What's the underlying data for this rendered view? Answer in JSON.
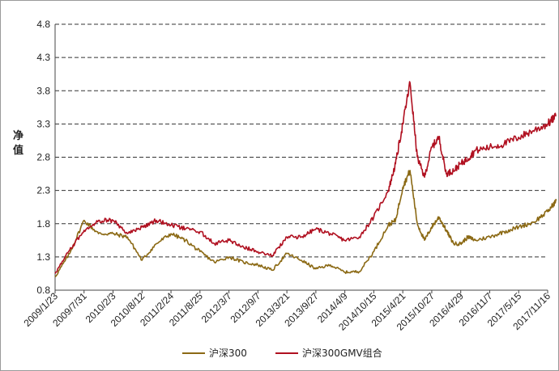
{
  "chart_data": {
    "type": "line",
    "ylabel": "净值",
    "ylim": [
      0.8,
      4.8
    ],
    "yticks": [
      "0.8",
      "1.3",
      "1.8",
      "2.3",
      "2.8",
      "3.3",
      "3.8",
      "4.3",
      "4.8"
    ],
    "categories": [
      "2009/1/23",
      "2009/7/31",
      "2010/2/3",
      "2010/8/12",
      "2011/2/24",
      "2011/8/25",
      "2012/3/7",
      "2012/9/7",
      "2013/3/21",
      "2013/9/27",
      "2014/4/9",
      "2014/10/15",
      "2015/4/21",
      "2015/10/27",
      "2016/4/29",
      "2016/11/7",
      "2017/5/15",
      "2017/11/16"
    ],
    "grid": true,
    "legend_position": "bottom",
    "series": [
      {
        "name": "沪深300",
        "color": "#8b6914",
        "x": [
          0,
          0.5,
          1,
          1.5,
          2,
          2.5,
          3,
          3.5,
          4,
          4.5,
          5,
          5.5,
          6,
          6.5,
          7,
          7.5,
          8,
          8.5,
          9,
          9.5,
          10,
          10.5,
          11,
          11.5,
          11.75,
          12,
          12.25,
          12.5,
          12.75,
          13,
          13.25,
          13.5,
          13.75,
          14,
          14.25,
          14.5,
          15,
          15.5,
          16,
          16.5,
          17,
          17.3
        ],
        "values": [
          1.0,
          1.35,
          1.85,
          1.65,
          1.65,
          1.6,
          1.25,
          1.5,
          1.65,
          1.55,
          1.38,
          1.22,
          1.3,
          1.22,
          1.18,
          1.1,
          1.35,
          1.25,
          1.12,
          1.18,
          1.07,
          1.08,
          1.38,
          1.78,
          1.85,
          2.35,
          2.6,
          1.8,
          1.55,
          1.75,
          1.9,
          1.7,
          1.5,
          1.5,
          1.6,
          1.55,
          1.6,
          1.68,
          1.75,
          1.82,
          1.98,
          2.15
        ]
      },
      {
        "name": "沪深300GMV组合",
        "color": "#b01020",
        "x": [
          0,
          0.5,
          1,
          1.5,
          2,
          2.5,
          3,
          3.5,
          4,
          4.5,
          5,
          5.5,
          6,
          6.5,
          7,
          7.5,
          8,
          8.5,
          9,
          9.5,
          10,
          10.5,
          11,
          11.5,
          11.75,
          12,
          12.25,
          12.5,
          12.75,
          13,
          13.25,
          13.5,
          13.75,
          14,
          14.25,
          14.5,
          15,
          15.5,
          16,
          16.5,
          17,
          17.3
        ],
        "values": [
          1.05,
          1.4,
          1.7,
          1.85,
          1.85,
          1.65,
          1.75,
          1.85,
          1.78,
          1.72,
          1.68,
          1.5,
          1.55,
          1.45,
          1.38,
          1.32,
          1.6,
          1.6,
          1.72,
          1.65,
          1.55,
          1.6,
          1.9,
          2.3,
          2.7,
          3.3,
          3.92,
          2.8,
          2.5,
          2.95,
          3.1,
          2.55,
          2.6,
          2.7,
          2.78,
          2.9,
          2.95,
          3.0,
          3.1,
          3.2,
          3.3,
          3.42
        ]
      }
    ]
  }
}
